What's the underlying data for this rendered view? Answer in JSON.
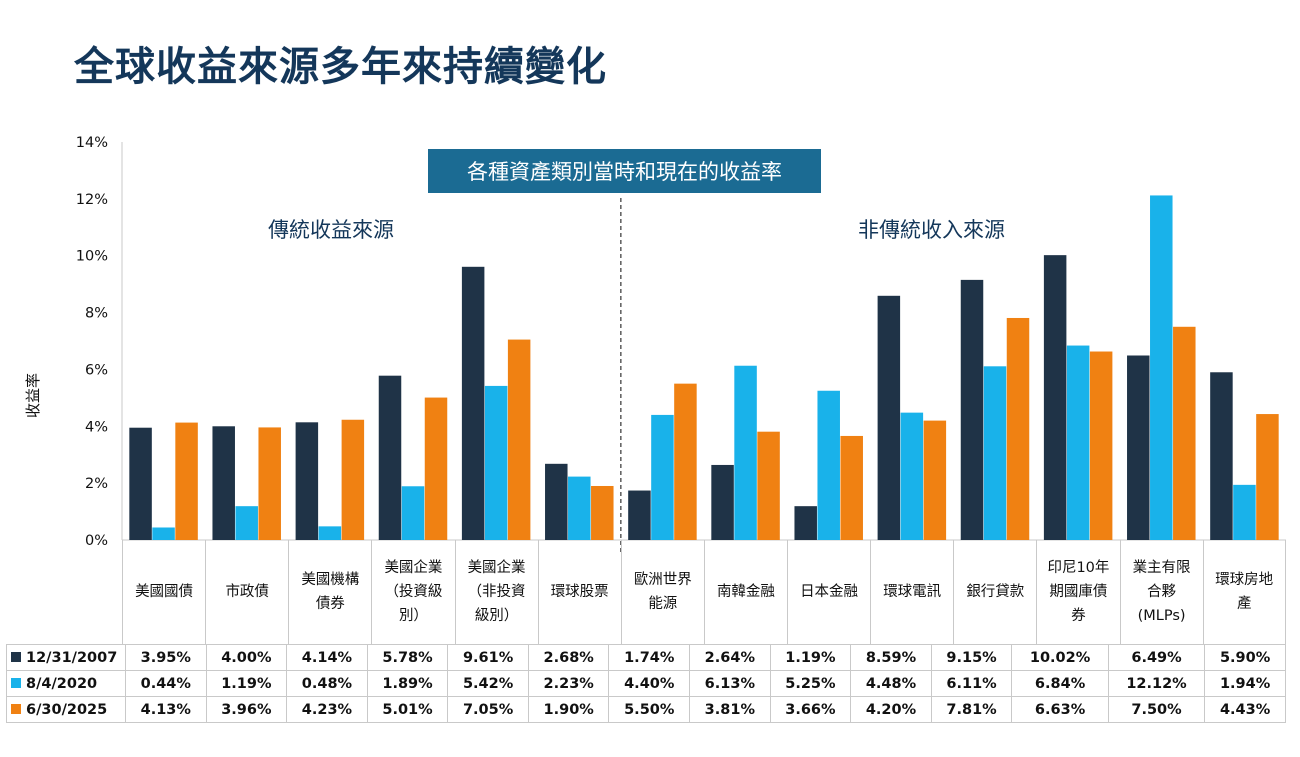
{
  "title": "全球收益來源多年來持續變化",
  "banner": "各種資產類別當時和現在的收益率",
  "groups": {
    "left": "傳統收益來源",
    "right": "非傳統收入來源"
  },
  "colors": {
    "navy": "#1f3347",
    "blue": "#19b2ea",
    "orange": "#f08112",
    "title": "#14375a",
    "banner": "#1b6b93"
  },
  "chart_data": {
    "type": "bar",
    "title": "",
    "ylabel": "收益率",
    "ylim": [
      0,
      14
    ],
    "yticks": [
      "0%",
      "2%",
      "4%",
      "6%",
      "8%",
      "10%",
      "12%",
      "14%"
    ],
    "grid": false,
    "categories": [
      "美國國債",
      "市政債",
      "美國機構\n債券",
      "美國企業\n（投資級\n別）",
      "美國企業\n（非投資\n級別）",
      "環球股票",
      "歐洲世界\n能源",
      "南韓金融",
      "日本金融",
      "環球電訊",
      "銀行貸款",
      "印尼10年\n期國庫債\n券",
      "業主有限\n合夥\n(MLPs)",
      "環球房地\n產"
    ],
    "series": [
      {
        "name": "12/31/2007",
        "color": "#1f3347",
        "values": [
          3.95,
          4.0,
          4.14,
          5.78,
          9.61,
          2.68,
          1.74,
          2.64,
          1.19,
          8.59,
          9.15,
          10.02,
          6.49,
          5.9
        ],
        "labels": [
          "3.95%",
          "4.00%",
          "4.14%",
          "5.78%",
          "9.61%",
          "2.68%",
          "1.74%",
          "2.64%",
          "1.19%",
          "8.59%",
          "9.15%",
          "10.02%",
          "6.49%",
          "5.90%"
        ]
      },
      {
        "name": "8/4/2020",
        "color": "#19b2ea",
        "values": [
          0.44,
          1.19,
          0.48,
          1.89,
          5.42,
          2.23,
          4.4,
          6.13,
          5.25,
          4.48,
          6.11,
          6.84,
          12.12,
          1.94
        ],
        "labels": [
          "0.44%",
          "1.19%",
          "0.48%",
          "1.89%",
          "5.42%",
          "2.23%",
          "4.40%",
          "6.13%",
          "5.25%",
          "4.48%",
          "6.11%",
          "6.84%",
          "12.12%",
          "1.94%"
        ]
      },
      {
        "name": "6/30/2025",
        "color": "#f08112",
        "values": [
          4.13,
          3.96,
          4.23,
          5.01,
          7.05,
          1.9,
          5.5,
          3.81,
          3.66,
          4.2,
          7.81,
          6.63,
          7.5,
          4.43
        ],
        "labels": [
          "4.13%",
          "3.96%",
          "4.23%",
          "5.01%",
          "7.05%",
          "1.90%",
          "5.50%",
          "3.81%",
          "3.66%",
          "4.20%",
          "7.81%",
          "6.63%",
          "7.50%",
          "4.43%"
        ]
      }
    ]
  }
}
